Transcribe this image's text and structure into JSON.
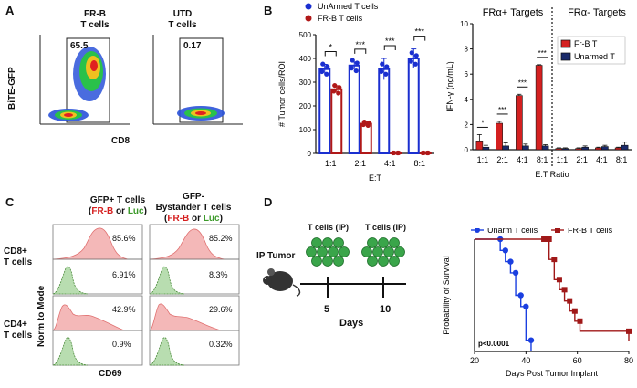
{
  "panels": {
    "a": "A",
    "b": "B",
    "c": "C",
    "d": "D"
  },
  "panel_a": {
    "plot1_title": "FR-B",
    "plot1_sub": "T cells",
    "plot1_pct": "65.5",
    "plot2_title": "UTD",
    "plot2_sub": "T cells",
    "plot2_pct": "0.17",
    "ylabel": "BiTE-GFP",
    "xlabel": "CD8"
  },
  "panel_c": {
    "col1_title": "GFP+ T cells",
    "col2_title1": "GFP-",
    "col2_title2": "Bystander T cells",
    "sub_open": "(",
    "sub_frb": "FR-B",
    "sub_or": " or ",
    "sub_luc": "Luc",
    "sub_close": ")",
    "row1_label": "CD8+",
    "row1_label2": "T cells",
    "row2_label": "CD4+",
    "row2_label2": "T cells",
    "ylabel": "Norm to Mode",
    "xlabel": "CD69",
    "pcts": {
      "r1c1_top": "85.6%",
      "r1c1_bot": "6.91%",
      "r1c2_top": "85.2%",
      "r1c2_bot": "8.3%",
      "r2c1_top": "42.9%",
      "r2c1_bot": "0.9%",
      "r2c2_top": "29.6%",
      "r2c2_bot": "0.32%"
    }
  },
  "panel_d_schematic": {
    "ip_tumor": "IP Tumor",
    "tcells1": "T cells (IP)",
    "tcells2": "T cells (IP)",
    "day5": "5",
    "day10": "10",
    "days": "Days"
  },
  "chart_data": [
    {
      "type": "bar",
      "id": "tumor_cells",
      "title": "",
      "ylabel": "# Tumor cells/ROI",
      "xlabel": "E:T",
      "categories": [
        "1:1",
        "2:1",
        "4:1",
        "8:1"
      ],
      "ylim": [
        0,
        500
      ],
      "yticks": [
        0,
        100,
        200,
        300,
        400,
        500
      ],
      "series": [
        {
          "name": "UnArmed T cells",
          "color": "#1a2fd0",
          "values": [
            355,
            370,
            355,
            400
          ],
          "errors": [
            20,
            15,
            45,
            40
          ]
        },
        {
          "name": "FR-B T cells",
          "color": "#b01818",
          "values": [
            270,
            125,
            2,
            2
          ],
          "errors": [
            15,
            10,
            2,
            2
          ]
        }
      ],
      "significance": [
        "*",
        "***",
        "***",
        "***"
      ]
    },
    {
      "type": "bar",
      "id": "ifn_gamma",
      "ylabel": "IFN-γ (ng/mL)",
      "xlabel": "E:T Ratio",
      "section_titles": [
        "FRα+ Targets",
        "FRα- Targets"
      ],
      "categories": [
        "1:1",
        "2:1",
        "4:1",
        "8:1",
        "1:1",
        "2:1",
        "4:1",
        "8:1"
      ],
      "ylim": [
        0,
        10
      ],
      "yticks": [
        0,
        2,
        4,
        6,
        8,
        10
      ],
      "series": [
        {
          "name": "Fr-B T",
          "color": "#d42020",
          "values": [
            0.7,
            2.1,
            4.3,
            6.7,
            0.1,
            0.1,
            0.15,
            0.15
          ],
          "errors": [
            0.5,
            0.15,
            0.1,
            0.05,
            0.05,
            0.05,
            0.05,
            0.05
          ]
        },
        {
          "name": "Unarmed T",
          "color": "#1a2a6a",
          "values": [
            0.2,
            0.3,
            0.3,
            0.3,
            0.1,
            0.2,
            0.25,
            0.35
          ],
          "errors": [
            0.15,
            0.25,
            0.15,
            0.1,
            0.05,
            0.1,
            0.1,
            0.25
          ]
        }
      ],
      "significance": [
        "*",
        "***",
        "***",
        "***"
      ]
    },
    {
      "type": "line",
      "id": "survival",
      "ylabel": "Probability of Survival",
      "xlabel": "Days Post Tumor Implant",
      "xlim": [
        20,
        80
      ],
      "ylim": [
        0,
        1
      ],
      "xticks": [
        20,
        40,
        60,
        80
      ],
      "annotation": "p<0.0001",
      "series": [
        {
          "name": "Unarm T cells",
          "color": "#1a3fe0",
          "marker": "circle",
          "x": [
            20,
            30,
            32,
            34,
            36,
            38,
            40,
            42
          ],
          "y": [
            1.0,
            0.9,
            0.8,
            0.7,
            0.5,
            0.4,
            0.1,
            0.0
          ]
        },
        {
          "name": "FR-B T cells",
          "color": "#a01818",
          "marker": "square",
          "x": [
            20,
            47,
            49,
            51,
            53,
            55,
            57,
            59,
            61,
            80
          ],
          "y": [
            1.0,
            1.0,
            0.82,
            0.64,
            0.55,
            0.45,
            0.36,
            0.27,
            0.18,
            0.09
          ]
        }
      ]
    }
  ]
}
